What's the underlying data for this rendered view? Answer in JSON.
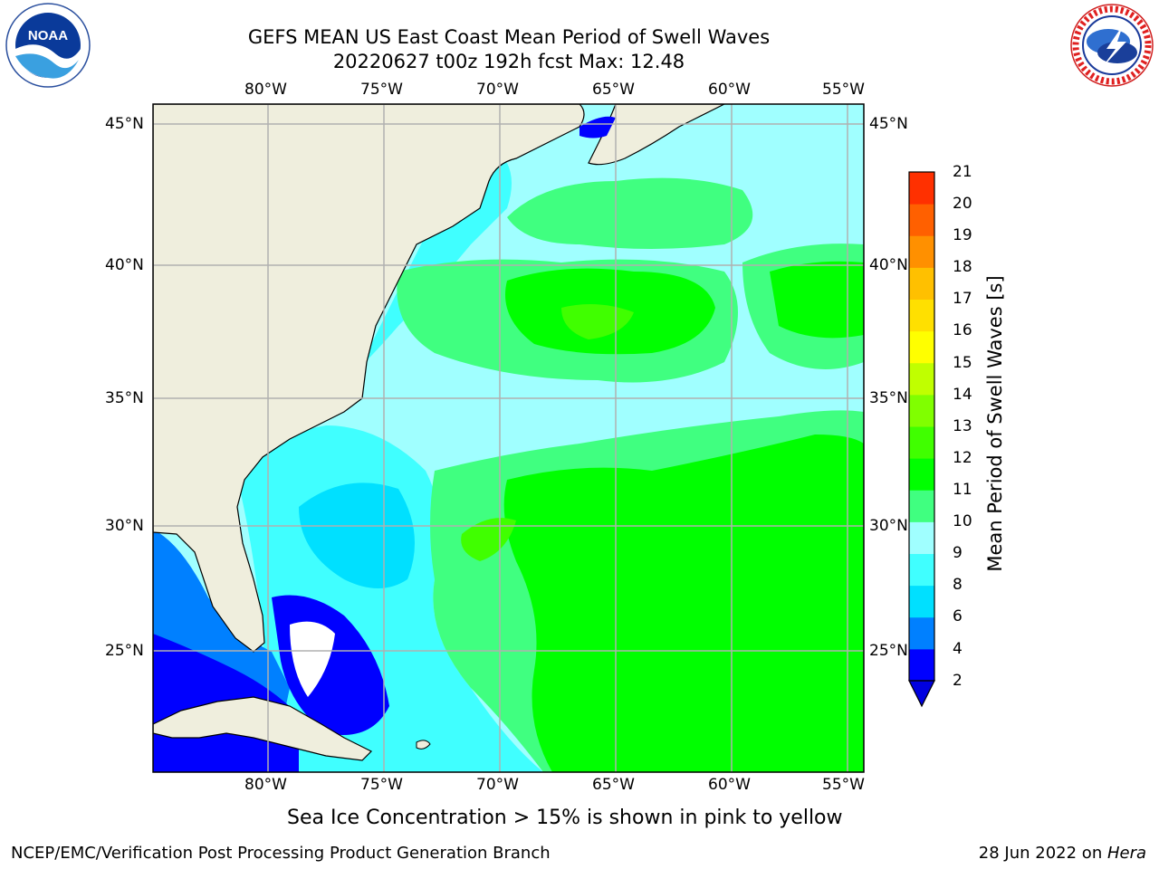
{
  "header": {
    "title_line1": "GEFS MEAN US East Coast Mean Period of Swell Waves",
    "title_line2": "20220627 t00z 192h fcst   Max: 12.48"
  },
  "logos": {
    "left": "NOAA",
    "left_ring": "NATIONAL OCEANIC AND ATMOSPHERIC ADMINISTRATION · U.S. DEPARTMENT OF COMMERCE",
    "right_ring": "NATIONAL WEATHER SERVICE"
  },
  "map": {
    "lon_labels": [
      "80°W",
      "75°W",
      "70°W",
      "65°W",
      "60°W",
      "55°W"
    ],
    "lat_labels": [
      "45°N",
      "40°N",
      "35°N",
      "30°N",
      "25°N"
    ],
    "colors": {
      "land": "#efeedd",
      "grid": "#b0b0b0",
      "coast": "#000000"
    }
  },
  "colorbar": {
    "label": "Mean Period of Swell Waves [s]",
    "ticks": [
      "2",
      "4",
      "6",
      "8",
      "9",
      "10",
      "11",
      "12",
      "13",
      "14",
      "15",
      "16",
      "17",
      "18",
      "19",
      "20",
      "21"
    ],
    "colors": [
      "#0000ff",
      "#0080ff",
      "#00e0ff",
      "#40ffff",
      "#a0ffff",
      "#40ff80",
      "#00ff00",
      "#40ff00",
      "#80ff00",
      "#c0ff00",
      "#ffff00",
      "#ffe000",
      "#ffc000",
      "#ff9000",
      "#ff6000",
      "#ff3000",
      "#ff0000"
    ],
    "under_color": "#0000e0"
  },
  "caption": "Sea Ice Concentration > 15% is shown in pink to yellow",
  "footer": {
    "left": "NCEP/EMC/Verification Post Processing Product Generation Branch",
    "right_date": "28 Jun 2022 on ",
    "right_machine": "Hera"
  }
}
